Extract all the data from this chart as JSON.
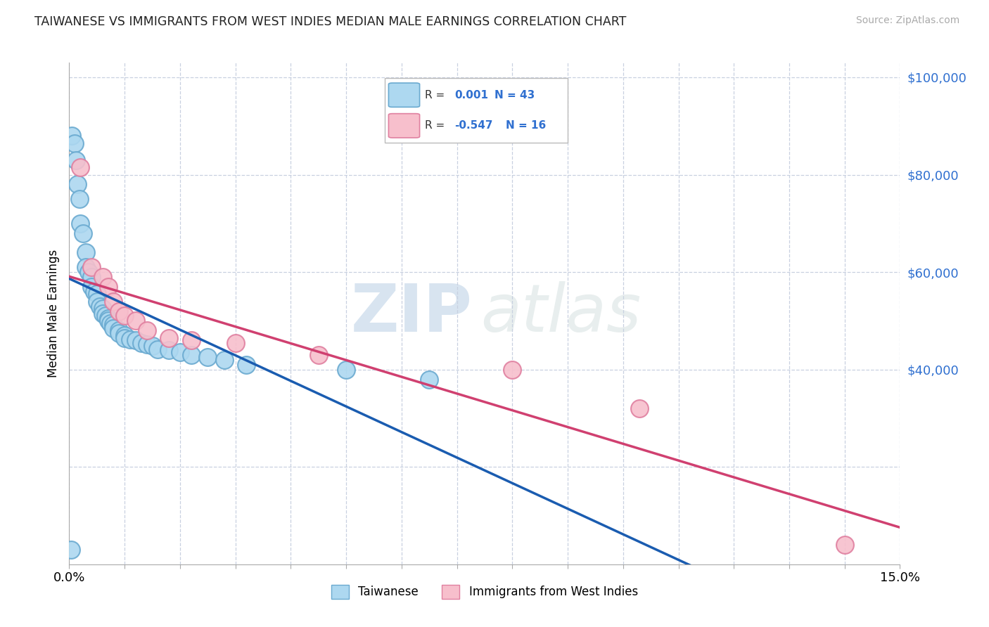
{
  "title": "TAIWANESE VS IMMIGRANTS FROM WEST INDIES MEDIAN MALE EARNINGS CORRELATION CHART",
  "source": "Source: ZipAtlas.com",
  "ylabel": "Median Male Earnings",
  "xlim": [
    0.0,
    0.15
  ],
  "ylim": [
    0,
    103000
  ],
  "background_color": "#ffffff",
  "grid_color": "#c8d0e0",
  "taiwanese_color": "#add8f0",
  "westindies_color": "#f7bfcc",
  "taiwanese_edge": "#6aaad0",
  "westindies_edge": "#e080a0",
  "trend_blue": "#1a5cb0",
  "trend_pink": "#d04070",
  "label_color": "#3070d0",
  "taiwanese_x": [
    0.0005,
    0.001,
    0.0012,
    0.0015,
    0.0018,
    0.002,
    0.0025,
    0.003,
    0.003,
    0.0035,
    0.004,
    0.004,
    0.0045,
    0.005,
    0.005,
    0.0055,
    0.006,
    0.006,
    0.0065,
    0.007,
    0.007,
    0.0075,
    0.008,
    0.008,
    0.009,
    0.009,
    0.01,
    0.01,
    0.011,
    0.012,
    0.013,
    0.014,
    0.015,
    0.016,
    0.018,
    0.02,
    0.022,
    0.025,
    0.028,
    0.032,
    0.05,
    0.065,
    0.0003
  ],
  "taiwanese_y": [
    88000,
    86500,
    83000,
    78000,
    75000,
    70000,
    68000,
    64000,
    61000,
    60000,
    59000,
    57000,
    56000,
    55500,
    54000,
    53000,
    52500,
    51500,
    51000,
    50500,
    50000,
    49500,
    49200,
    48500,
    48000,
    47500,
    47000,
    46500,
    46200,
    46000,
    45500,
    45200,
    44800,
    44200,
    44000,
    43500,
    43000,
    42500,
    42000,
    41000,
    40000,
    38000,
    3000
  ],
  "westindies_x": [
    0.002,
    0.004,
    0.006,
    0.007,
    0.008,
    0.009,
    0.01,
    0.012,
    0.014,
    0.018,
    0.022,
    0.03,
    0.045,
    0.08,
    0.103,
    0.14
  ],
  "westindies_y": [
    81500,
    61000,
    59000,
    57000,
    54000,
    52000,
    51000,
    50000,
    48000,
    46500,
    46000,
    45500,
    43000,
    40000,
    32000,
    4000
  ],
  "yticks": [
    20000,
    40000,
    60000,
    80000,
    100000
  ],
  "ytick_labels": [
    "",
    "$40,000",
    "$60,000",
    "$80,000",
    "$100,000"
  ]
}
